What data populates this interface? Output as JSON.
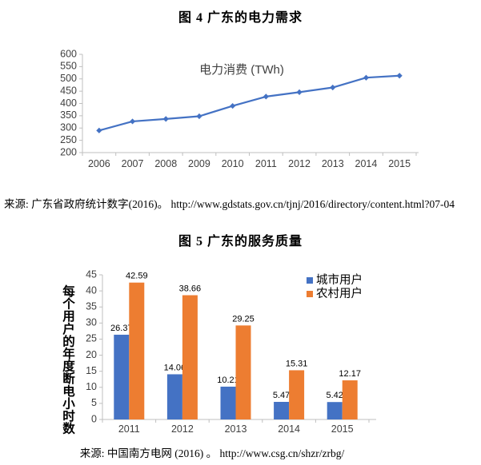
{
  "page": {
    "figure4": {
      "title": "图 4 广东的电力需求",
      "source": "来源: 广东省政府统计数字(2016)。  http://www.gdstats.gov.cn/tjnj/2016/directory/content.html?07-04"
    },
    "figure5": {
      "title": "图 5 广东的服务质量",
      "source": "来源: 中国南方电网 (2016) 。 http://www.csg.cn/shzr/zrbg/"
    }
  },
  "colors": {
    "blue": "#4472C4",
    "orange": "#ED7D31",
    "axis_line": "#BFBFBF",
    "tick_text": "#3F3F3F",
    "chart_title_text": "#404040",
    "data_label_text": "#000000"
  },
  "chart_data": [
    {
      "type": "line",
      "title": "电力消费 (TWh)",
      "x": [
        "2006",
        "2007",
        "2008",
        "2009",
        "2010",
        "2011",
        "2012",
        "2013",
        "2014",
        "2015"
      ],
      "series": [
        {
          "name": "电力消费 (TWh)",
          "color": "#4472C4",
          "values": [
            290,
            327,
            337,
            348,
            390,
            428,
            446,
            465,
            505,
            513
          ]
        }
      ],
      "xlabel": "",
      "ylabel": "",
      "ylim": [
        200,
        600
      ],
      "ytick_step": 50,
      "grid": false,
      "marker": "diamond",
      "legend_position": "none"
    },
    {
      "type": "bar",
      "title": "图 5 广东的服务质量",
      "categories": [
        "2011",
        "2012",
        "2013",
        "2014",
        "2015"
      ],
      "series": [
        {
          "name": "城市用户",
          "color": "#4472C4",
          "values": [
            26.37,
            14.06,
            10.21,
            5.47,
            5.42
          ]
        },
        {
          "name": "农村用户",
          "color": "#ED7D31",
          "values": [
            42.59,
            38.66,
            29.25,
            15.31,
            12.17
          ]
        }
      ],
      "xlabel": "",
      "ylabel": "每个用户的年度断电小时数",
      "ylim": [
        0,
        45
      ],
      "ytick_step": 5,
      "grid": false,
      "data_labels": true,
      "legend_position": "top-right"
    }
  ]
}
